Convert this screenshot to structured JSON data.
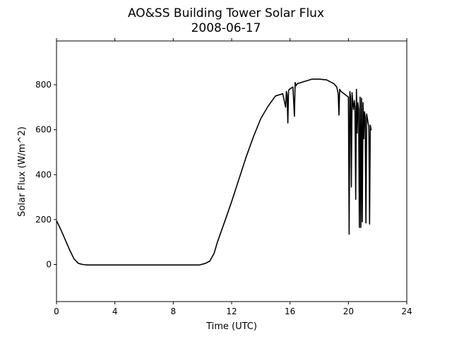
{
  "chart_data": {
    "type": "line",
    "title": "AO&SS Building Tower Solar Flux",
    "subtitle": "2008-06-17",
    "xlabel": "Time (UTC)",
    "ylabel": "Solar Flux (W/m^2)",
    "xlim": [
      0,
      24
    ],
    "ylim": [
      -165,
      995
    ],
    "xticks": [
      0,
      4,
      8,
      12,
      16,
      20,
      24
    ],
    "yticks": [
      0,
      200,
      400,
      600,
      800
    ],
    "grid": false,
    "series": [
      {
        "color": "#000000",
        "x": [
          0.0,
          0.3,
          0.6,
          0.9,
          1.2,
          1.5,
          1.8,
          2.1,
          2.5,
          3.0,
          4.0,
          5.0,
          6.0,
          7.0,
          8.0,
          9.0,
          9.8,
          10.2,
          10.5,
          10.8,
          11.0,
          11.3,
          11.6,
          12.0,
          12.5,
          13.0,
          13.5,
          14.0,
          14.5,
          15.0,
          15.5,
          15.7,
          15.75,
          15.8,
          15.85,
          15.9,
          15.95,
          16.0,
          16.2,
          16.3,
          16.35,
          16.4,
          16.45,
          16.5,
          17.0,
          17.5,
          18.0,
          18.5,
          19.0,
          19.2,
          19.3,
          19.35,
          19.4,
          19.5,
          19.8,
          20.0,
          20.05,
          20.1,
          20.15,
          20.2,
          20.25,
          20.3,
          20.35,
          20.4,
          20.45,
          20.5,
          20.55,
          20.6,
          20.65,
          20.7,
          20.75,
          20.8,
          20.85,
          20.9,
          20.95,
          21.0,
          21.05,
          21.1,
          21.15,
          21.2,
          21.25,
          21.3,
          21.35,
          21.4,
          21.45,
          21.5,
          21.55,
          21.6
        ],
        "y": [
          195,
          155,
          110,
          65,
          25,
          5,
          0,
          -2,
          -2,
          -2,
          -2,
          -2,
          -2,
          -2,
          -2,
          -2,
          -2,
          5,
          15,
          50,
          95,
          150,
          205,
          280,
          380,
          480,
          570,
          650,
          705,
          750,
          760,
          700,
          770,
          755,
          630,
          775,
          780,
          782,
          790,
          660,
          810,
          795,
          800,
          805,
          815,
          825,
          825,
          822,
          805,
          790,
          760,
          665,
          780,
          770,
          755,
          745,
          135,
          770,
          740,
          345,
          765,
          720,
          690,
          730,
          700,
          290,
          780,
          585,
          720,
          690,
          165,
          745,
          165,
          740,
          190,
          720,
          560,
          680,
          655,
          185,
          670,
          650,
          630,
          615,
          180,
          620,
          600,
          600
        ]
      }
    ]
  }
}
